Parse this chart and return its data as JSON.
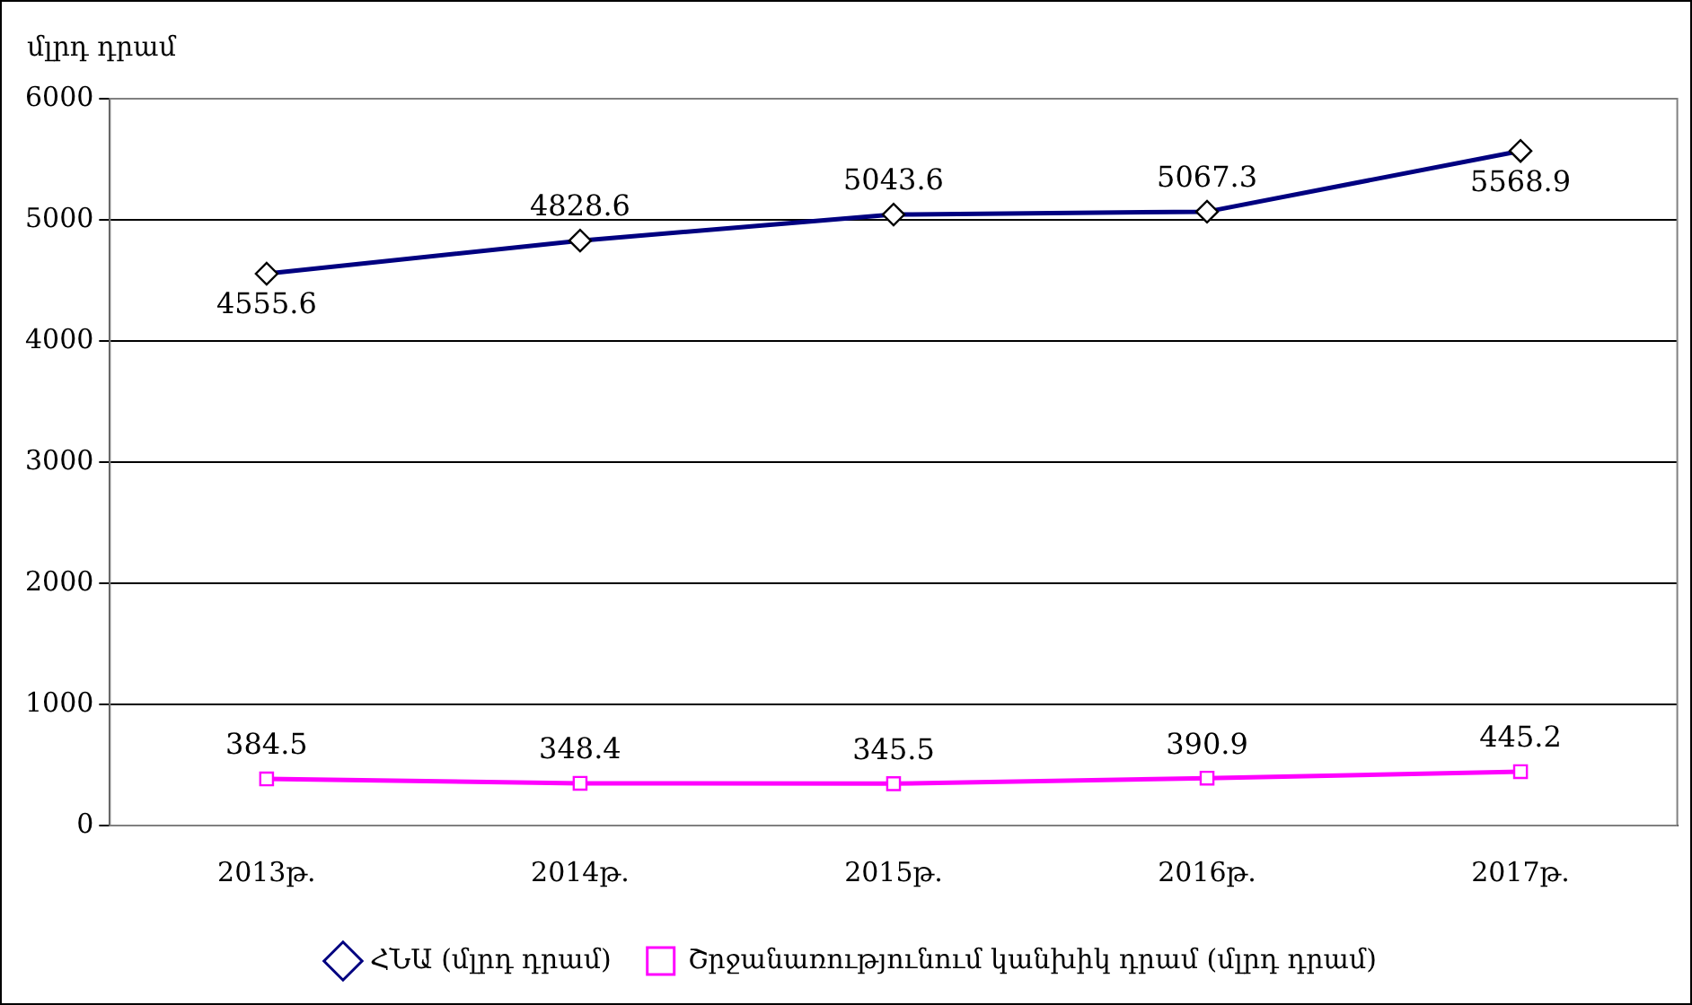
{
  "chart_data": {
    "type": "line",
    "ylabel": "մլրդ դրամ",
    "categories": [
      "2013թ.",
      "2014թ.",
      "2015թ.",
      "2016թ.",
      "2017թ."
    ],
    "series": [
      {
        "name": "ՀՆԱ (մլրդ դրամ)",
        "color": "#000080",
        "marker": "diamond",
        "values": [
          4555.6,
          4828.6,
          5043.6,
          5067.3,
          5568.9
        ]
      },
      {
        "name": "Շրջանառությունում կանխիկ դրամ (մլրդ դրամ)",
        "color": "#ff00ff",
        "marker": "square",
        "values": [
          384.5,
          348.4,
          345.5,
          390.9,
          445.2
        ]
      }
    ],
    "ylim": [
      0,
      6000
    ],
    "yticks": [
      0,
      1000,
      2000,
      3000,
      4000,
      5000,
      6000
    ],
    "grid": "y",
    "legend": "bottom",
    "data_labels": true
  }
}
